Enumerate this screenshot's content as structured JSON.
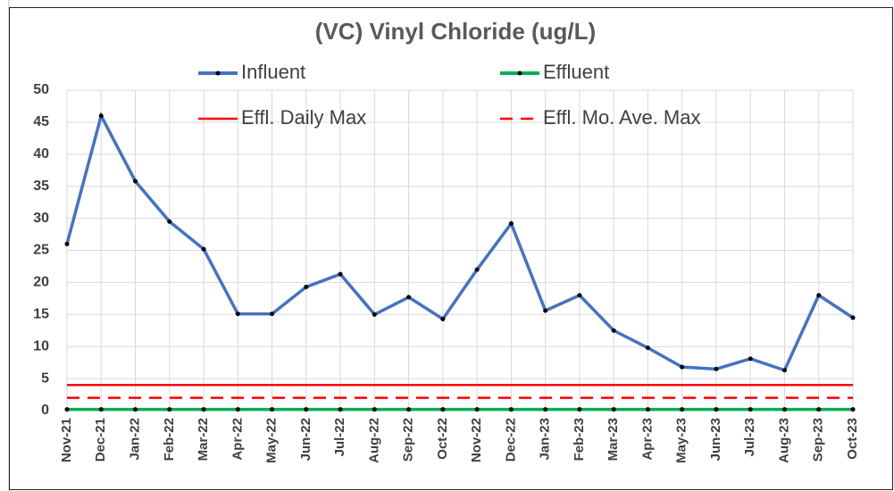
{
  "chart_data": {
    "type": "line",
    "title": "(VC) Vinyl Chloride (ug/L)",
    "categories": [
      "Nov-21",
      "Dec-21",
      "Jan-22",
      "Feb-22",
      "Mar-22",
      "Apr-22",
      "May-22",
      "Jun-22",
      "Jul-22",
      "Aug-22",
      "Sep-22",
      "Oct-22",
      "Nov-22",
      "Dec-22",
      "Jan-23",
      "Feb-23",
      "Mar-23",
      "Apr-23",
      "May-23",
      "Jun-23",
      "Jul-23",
      "Aug-23",
      "Sep-23",
      "Oct-23"
    ],
    "series": [
      {
        "name": "Influent",
        "color": "#4472c4",
        "markers": true,
        "values": [
          26,
          46,
          35.8,
          29.5,
          25.2,
          15.1,
          15.1,
          19.3,
          21.3,
          15,
          17.7,
          14.3,
          22,
          29.2,
          15.6,
          18,
          12.5,
          9.8,
          6.8,
          6.5,
          8.1,
          6.3,
          18,
          14.5
        ]
      },
      {
        "name": "Effluent",
        "color": "#00b050",
        "markers": true,
        "values": [
          0.2,
          0.2,
          0.2,
          0.2,
          0.2,
          0.2,
          0.2,
          0.2,
          0.2,
          0.2,
          0.2,
          0.2,
          0.2,
          0.2,
          0.2,
          0.2,
          0.2,
          0.2,
          0.2,
          0.2,
          0.2,
          0.2,
          0.2,
          0.2
        ]
      },
      {
        "name": "Effl. Daily Max",
        "color": "#ff0000",
        "markers": false,
        "values": [
          4,
          4,
          4,
          4,
          4,
          4,
          4,
          4,
          4,
          4,
          4,
          4,
          4,
          4,
          4,
          4,
          4,
          4,
          4,
          4,
          4,
          4,
          4,
          4
        ]
      },
      {
        "name": "Effl. Mo. Ave. Max",
        "color": "#ff0000",
        "dashed": true,
        "markers": false,
        "values": [
          2,
          2,
          2,
          2,
          2,
          2,
          2,
          2,
          2,
          2,
          2,
          2,
          2,
          2,
          2,
          2,
          2,
          2,
          2,
          2,
          2,
          2,
          2,
          2
        ]
      }
    ],
    "ylim": [
      0,
      50
    ],
    "yticks": [
      0,
      5,
      10,
      15,
      20,
      25,
      30,
      35,
      40,
      45,
      50
    ],
    "grid": true
  }
}
